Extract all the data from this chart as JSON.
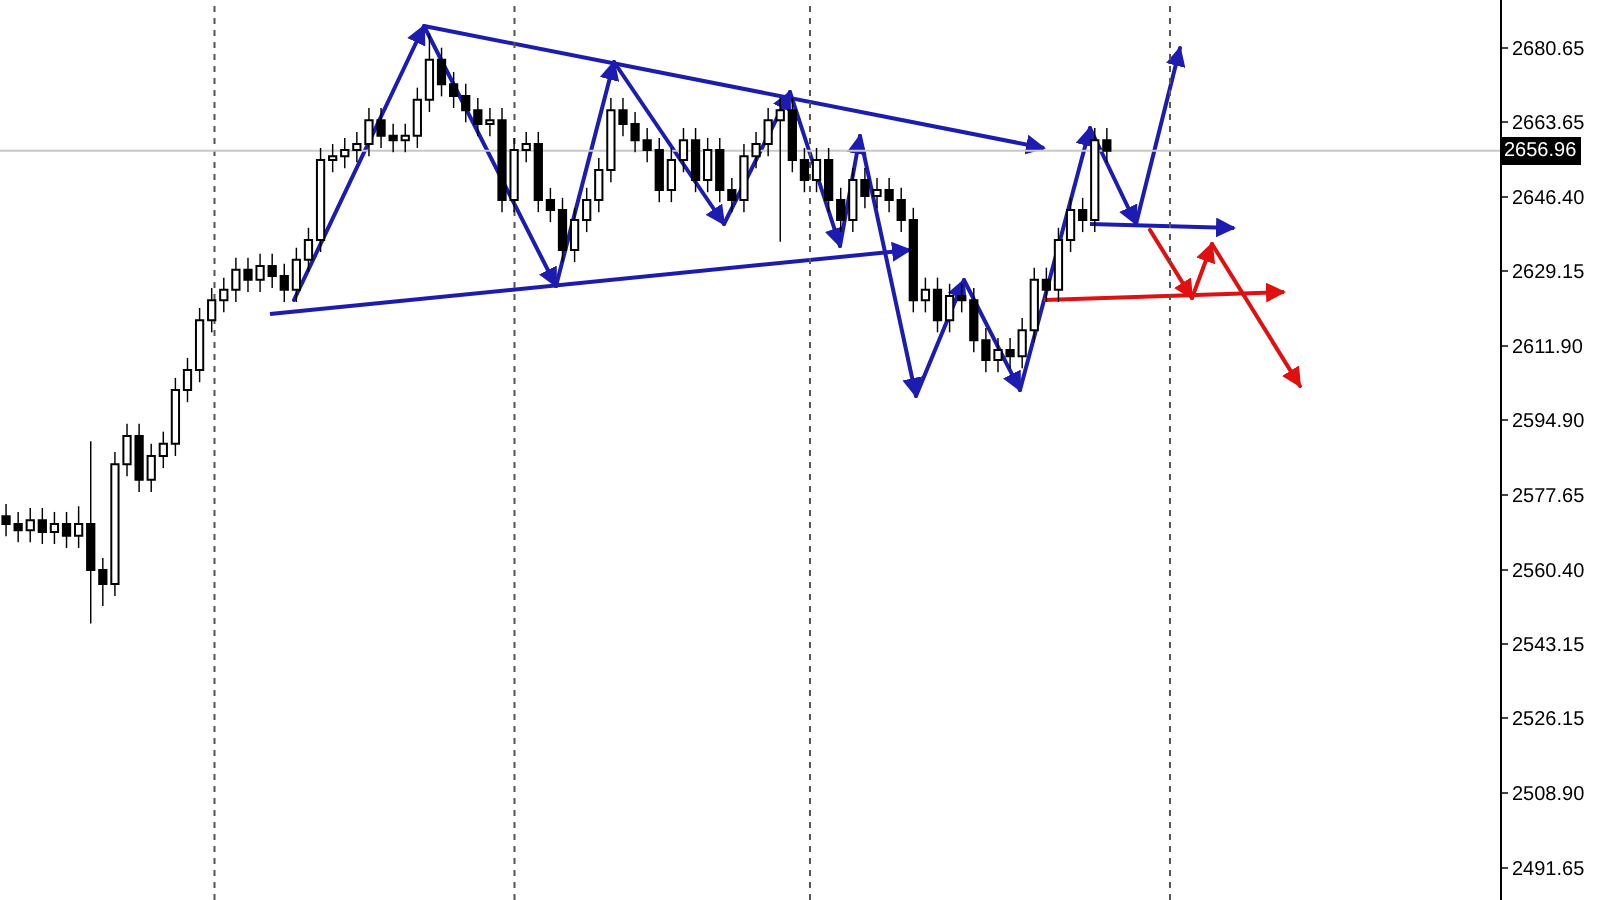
{
  "chart_data": {
    "type": "candlestick",
    "categories": [
      null,
      null,
      null,
      null,
      null,
      null,
      null,
      null,
      null,
      null,
      null,
      null,
      null,
      null,
      null,
      null,
      null,
      null,
      null,
      null,
      null,
      null,
      null,
      null,
      null,
      null,
      null,
      null,
      null,
      null,
      null,
      null,
      null,
      null,
      null,
      null,
      null,
      null,
      null,
      null,
      null,
      null,
      null,
      null,
      null,
      null,
      null,
      null,
      null,
      null,
      null,
      null,
      null,
      null,
      null,
      null,
      null,
      null,
      null,
      null,
      null,
      null,
      null,
      null,
      null,
      null,
      null,
      null,
      null,
      null,
      null,
      null,
      null,
      null,
      null,
      null,
      null,
      null,
      null,
      null,
      null,
      null,
      null,
      null,
      null,
      null,
      null,
      null,
      null,
      null,
      null,
      null,
      null,
      null,
      null,
      null,
      null,
      null,
      null,
      null,
      null,
      null,
      null,
      null,
      null,
      null,
      null,
      null,
      null,
      null,
      null,
      null,
      null,
      null,
      null,
      null,
      null,
      null,
      null,
      null,
      null,
      null,
      null,
      null
    ],
    "ohlc": [
      [
        2572.7,
        2575.5,
        2568.1,
        2570.9
      ],
      [
        2570.9,
        2573.7,
        2566.7,
        2569.5
      ],
      [
        2569.5,
        2574.6,
        2566.7,
        2571.8
      ],
      [
        2571.8,
        2574.6,
        2566.3,
        2569.1
      ],
      [
        2569.1,
        2573.7,
        2566.3,
        2570.9
      ],
      [
        2570.9,
        2573.7,
        2565.4,
        2568.2
      ],
      [
        2568.2,
        2575.0,
        2565.4,
        2570.9
      ],
      [
        2570.9,
        2590.0,
        2548.0,
        2560.3
      ],
      [
        2560.3,
        2563.1,
        2552.0,
        2557.1
      ],
      [
        2557.1,
        2587.5,
        2554.3,
        2584.7
      ],
      [
        2584.7,
        2594.0,
        2581.9,
        2591.2
      ],
      [
        2591.2,
        2594.0,
        2578.3,
        2581.1
      ],
      [
        2581.1,
        2589.4,
        2578.3,
        2586.6
      ],
      [
        2586.6,
        2592.2,
        2583.8,
        2589.4
      ],
      [
        2589.4,
        2604.6,
        2586.6,
        2601.8
      ],
      [
        2601.8,
        2609.2,
        2599.0,
        2606.4
      ],
      [
        2606.4,
        2620.7,
        2603.6,
        2617.9
      ],
      [
        2617.9,
        2625.3,
        2615.1,
        2622.5
      ],
      [
        2622.5,
        2627.7,
        2619.7,
        2624.9
      ],
      [
        2624.9,
        2632.3,
        2622.1,
        2629.5
      ],
      [
        2629.5,
        2632.3,
        2624.4,
        2627.2
      ],
      [
        2627.2,
        2633.2,
        2624.4,
        2630.4
      ],
      [
        2630.4,
        2633.2,
        2625.3,
        2628.1
      ],
      [
        2628.1,
        2630.9,
        2622.1,
        2624.9
      ],
      [
        2624.9,
        2634.6,
        2622.1,
        2631.8
      ],
      [
        2631.8,
        2639.2,
        2629.0,
        2636.4
      ],
      [
        2636.4,
        2657.6,
        2633.6,
        2654.8
      ],
      [
        2654.8,
        2658.5,
        2652.0,
        2655.7
      ],
      [
        2655.7,
        2659.9,
        2652.9,
        2657.1
      ],
      [
        2657.1,
        2661.3,
        2654.3,
        2658.5
      ],
      [
        2658.5,
        2666.8,
        2655.7,
        2664.0
      ],
      [
        2664.0,
        2666.8,
        2657.6,
        2660.4
      ],
      [
        2660.4,
        2663.2,
        2656.6,
        2659.4
      ],
      [
        2659.4,
        2663.2,
        2656.6,
        2660.4
      ],
      [
        2660.4,
        2671.5,
        2657.6,
        2668.7
      ],
      [
        2668.7,
        2684.0,
        2665.9,
        2677.9
      ],
      [
        2677.9,
        2680.7,
        2669.5,
        2672.3
      ],
      [
        2672.3,
        2675.1,
        2666.8,
        2669.6
      ],
      [
        2669.6,
        2672.4,
        2663.5,
        2666.3
      ],
      [
        2666.3,
        2669.1,
        2660.3,
        2663.1
      ],
      [
        2663.1,
        2666.8,
        2660.3,
        2664.0
      ],
      [
        2664.0,
        2666.8,
        2642.8,
        2645.6
      ],
      [
        2645.6,
        2659.9,
        2642.8,
        2657.1
      ],
      [
        2657.1,
        2661.3,
        2654.3,
        2658.5
      ],
      [
        2658.5,
        2661.3,
        2642.8,
        2645.6
      ],
      [
        2645.6,
        2648.4,
        2640.5,
        2643.3
      ],
      [
        2643.3,
        2646.1,
        2631.3,
        2634.1
      ],
      [
        2634.1,
        2643.8,
        2631.3,
        2641.0
      ],
      [
        2641.0,
        2648.4,
        2638.2,
        2645.6
      ],
      [
        2645.6,
        2655.3,
        2642.8,
        2652.5
      ],
      [
        2652.5,
        2669.1,
        2649.7,
        2666.3
      ],
      [
        2666.3,
        2669.1,
        2660.3,
        2663.1
      ],
      [
        2663.1,
        2665.9,
        2656.6,
        2659.4
      ],
      [
        2659.4,
        2662.2,
        2654.3,
        2657.1
      ],
      [
        2657.1,
        2659.9,
        2645.1,
        2647.9
      ],
      [
        2647.9,
        2657.6,
        2645.1,
        2654.8
      ],
      [
        2654.8,
        2662.2,
        2652.0,
        2659.4
      ],
      [
        2659.4,
        2662.2,
        2647.4,
        2650.2
      ],
      [
        2650.2,
        2659.9,
        2647.4,
        2657.1
      ],
      [
        2657.1,
        2659.9,
        2645.1,
        2647.9
      ],
      [
        2647.9,
        2650.7,
        2642.8,
        2645.6
      ],
      [
        2645.6,
        2658.5,
        2642.8,
        2655.7
      ],
      [
        2655.7,
        2661.3,
        2652.9,
        2658.5
      ],
      [
        2658.5,
        2666.8,
        2655.7,
        2664.0
      ],
      [
        2664.0,
        2669.1,
        2636.0,
        2666.3
      ],
      [
        2666.3,
        2669.1,
        2652.0,
        2654.8
      ],
      [
        2654.8,
        2657.6,
        2647.4,
        2650.2
      ],
      [
        2650.2,
        2657.6,
        2647.4,
        2654.8
      ],
      [
        2654.8,
        2657.6,
        2642.8,
        2645.6
      ],
      [
        2645.6,
        2648.4,
        2638.2,
        2641.0
      ],
      [
        2641.0,
        2653.0,
        2638.2,
        2650.2
      ],
      [
        2650.2,
        2653.0,
        2643.7,
        2646.5
      ],
      [
        2646.5,
        2650.7,
        2643.7,
        2647.9
      ],
      [
        2647.9,
        2650.7,
        2642.8,
        2645.6
      ],
      [
        2645.6,
        2648.4,
        2638.2,
        2641.0
      ],
      [
        2641.0,
        2643.8,
        2619.7,
        2622.5
      ],
      [
        2622.5,
        2627.7,
        2619.7,
        2624.9
      ],
      [
        2624.9,
        2627.7,
        2615.1,
        2617.9
      ],
      [
        2617.9,
        2626.3,
        2615.1,
        2623.5
      ],
      [
        2623.5,
        2626.3,
        2619.7,
        2622.5
      ],
      [
        2622.5,
        2625.3,
        2610.5,
        2613.3
      ],
      [
        2613.3,
        2616.1,
        2605.9,
        2608.7
      ],
      [
        2608.7,
        2613.8,
        2605.9,
        2611.0
      ],
      [
        2611.0,
        2613.8,
        2606.8,
        2609.6
      ],
      [
        2609.6,
        2618.4,
        2606.8,
        2615.6
      ],
      [
        2615.6,
        2630.0,
        2612.8,
        2627.2
      ],
      [
        2627.2,
        2630.0,
        2622.1,
        2624.9
      ],
      [
        2624.9,
        2639.2,
        2622.1,
        2636.4
      ],
      [
        2636.4,
        2646.1,
        2633.6,
        2643.3
      ],
      [
        2643.3,
        2646.1,
        2638.2,
        2641.0
      ],
      [
        2641.0,
        2662.2,
        2638.2,
        2659.4
      ],
      [
        2659.4,
        2662.2,
        2654.3,
        2656.96
      ],
      null,
      null,
      null,
      null,
      null,
      null,
      null,
      null,
      null,
      null,
      null,
      null,
      null,
      null,
      null,
      null,
      null,
      null,
      null,
      null,
      null,
      null,
      null,
      null,
      null,
      null,
      null,
      null,
      null,
      null,
      null,
      null
    ],
    "ylim": [
      2484.25,
      2691.7
    ],
    "yticks": [
      2680.65,
      2663.65,
      {
        "value": 2646.4,
        "label": "2646.40"
      },
      2629.15,
      {
        "value": 2611.9,
        "label": "2611.90"
      },
      {
        "value": 2594.9,
        "label": "2594.90"
      },
      2577.65,
      {
        "value": 2560.4,
        "label": "2560.40"
      },
      2543.15,
      2526.15,
      {
        "value": 2508.9,
        "label": "2508.90"
      },
      2491.65
    ],
    "ref_lines": [
      {
        "axis": "y",
        "value": 2656.96,
        "label": "2656.96",
        "color": "#c8c8c8"
      }
    ]
  }
}
